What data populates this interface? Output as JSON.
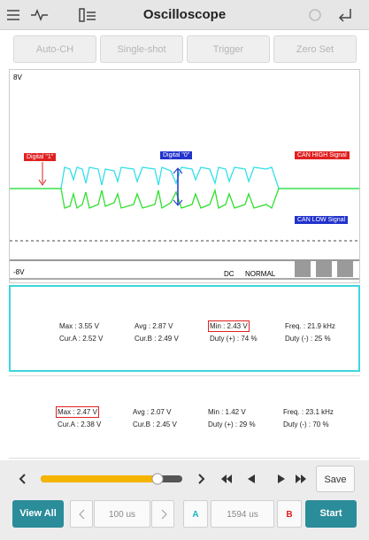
{
  "header": {
    "title": "Oscilloscope"
  },
  "toolbar": [
    "Auto-CH",
    "Single-shot",
    "Trigger",
    "Zero Set"
  ],
  "scope": {
    "y_top": "8V",
    "y_bottom": "-8V",
    "digital_1": "Digital \"1\"",
    "digital_0": "Digital \"0\"",
    "can_high": "CAN HIGH Signal",
    "can_low": "CAN LOW Signal",
    "coupling": "DC",
    "mode": "NORMAL"
  },
  "panels": [
    {
      "rows": [
        [
          "Max : 3.55 V",
          "Avg : 2.87 V",
          "Min : 2.43 V",
          "Freq. : 21.9 kHz"
        ],
        [
          "Cur.A : 2.52 V",
          "Cur.B : 2.49 V",
          "Duty (+) : 74 %",
          "Duty (-) : 25 %"
        ]
      ]
    },
    {
      "rows": [
        [
          "Max : 2.47 V",
          "Avg : 2.07 V",
          "Min : 1.42 V",
          "Freq. : 23.1 kHz"
        ],
        [
          "Cur.A : 2.38 V",
          "Cur.B : 2.45 V",
          "Duty (+) : 29 %",
          "Duty (-) : 70 %"
        ]
      ]
    }
  ],
  "controls": {
    "save": "Save",
    "view_all": "View All",
    "time_div": "100 us",
    "cursor_a": "A",
    "cursor_time": "1594 us",
    "cursor_b": "B",
    "start": "Start"
  }
}
